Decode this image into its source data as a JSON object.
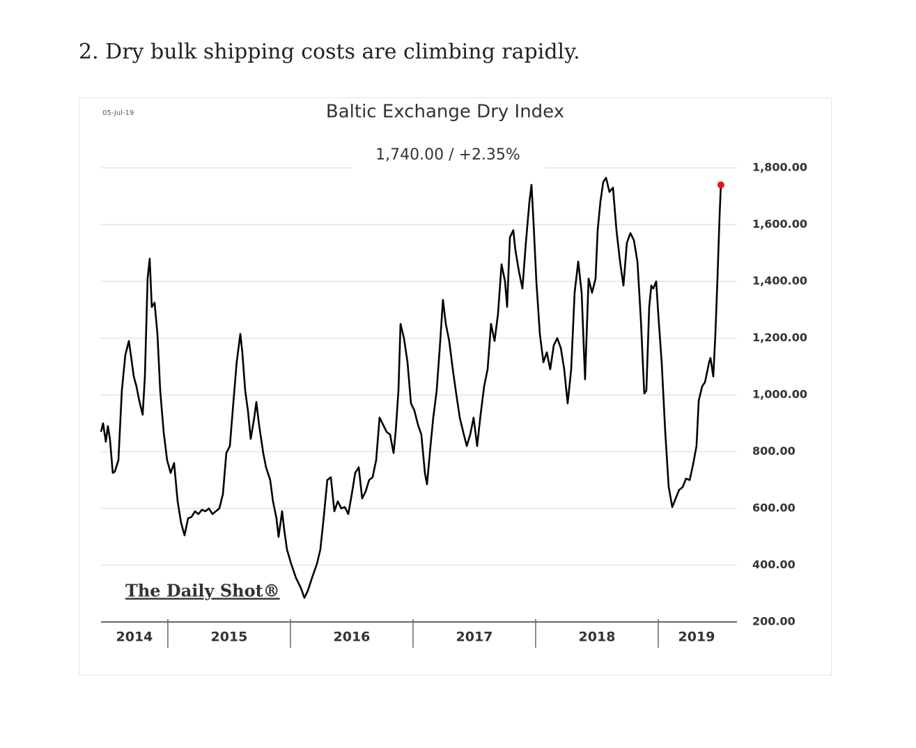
{
  "heading": "2. Dry bulk shipping costs are climbing rapidly.",
  "chart_data": {
    "type": "line",
    "date": "05-Jul-19",
    "title": "Baltic Exchange Dry Index",
    "annotation": "1,740.00 / +2.35%",
    "watermark": "The Daily Shot®",
    "x_categories": [
      "2014",
      "2015",
      "2016",
      "2017",
      "2018",
      "2019"
    ],
    "xlim": [
      2014.455,
      2019.625
    ],
    "xticks": [
      2015,
      2016,
      2017,
      2018,
      2019
    ],
    "ylim": [
      200,
      1800
    ],
    "yticks": [
      {
        "value": 200,
        "label": "200.00"
      },
      {
        "value": 400,
        "label": "400.00"
      },
      {
        "value": 600,
        "label": "600.00"
      },
      {
        "value": 800,
        "label": "800.00"
      },
      {
        "value": 1000,
        "label": "1,000.00"
      },
      {
        "value": 1200,
        "label": "1,200.00"
      },
      {
        "value": 1400,
        "label": "1,400.00"
      },
      {
        "value": 1600,
        "label": "1,600.00"
      },
      {
        "value": 1800,
        "label": "1,800.00"
      }
    ],
    "grid": true,
    "last_point_color": "#e8141b",
    "x": [
      2014.455,
      2014.472,
      2014.494,
      2014.511,
      2014.528,
      2014.551,
      2014.568,
      2014.597,
      2014.625,
      2014.653,
      2014.682,
      2014.699,
      2014.722,
      2014.744,
      2014.767,
      2014.795,
      2014.813,
      2014.835,
      2014.852,
      2014.869,
      2014.892,
      2014.915,
      2014.938,
      2014.966,
      2014.994,
      2015.023,
      2015.051,
      2015.08,
      2015.108,
      2015.136,
      2015.165,
      2015.193,
      2015.222,
      2015.25,
      2015.278,
      2015.307,
      2015.335,
      2015.364,
      2015.392,
      2015.42,
      2015.449,
      2015.477,
      2015.506,
      2015.534,
      2015.562,
      2015.591,
      2015.608,
      2015.631,
      2015.653,
      2015.676,
      2015.705,
      2015.722,
      2015.744,
      2015.778,
      2015.801,
      2015.835,
      2015.858,
      2015.886,
      2015.903,
      2015.932,
      2015.949,
      2015.972,
      2016.006,
      2016.045,
      2016.085,
      2016.114,
      2016.142,
      2016.176,
      2016.216,
      2016.244,
      2016.273,
      2016.301,
      2016.33,
      2016.358,
      2016.386,
      2016.415,
      2016.443,
      2016.472,
      2016.5,
      2016.528,
      2016.557,
      2016.585,
      2016.614,
      2016.642,
      2016.67,
      2016.699,
      2016.727,
      2016.756,
      2016.784,
      2016.813,
      2016.841,
      2016.858,
      2016.881,
      2016.898,
      2016.926,
      2016.955,
      2016.983,
      2017.011,
      2017.04,
      2017.068,
      2017.097,
      2017.114,
      2017.142,
      2017.165,
      2017.193,
      2017.222,
      2017.244,
      2017.267,
      2017.295,
      2017.324,
      2017.352,
      2017.381,
      2017.409,
      2017.438,
      2017.466,
      2017.494,
      2017.523,
      2017.551,
      2017.58,
      2017.608,
      2017.636,
      2017.665,
      2017.693,
      2017.722,
      2017.75,
      2017.767,
      2017.79,
      2017.818,
      2017.835,
      2017.864,
      2017.892,
      2017.92,
      2017.949,
      2017.966,
      2017.983,
      2018.006,
      2018.034,
      2018.063,
      2018.091,
      2018.119,
      2018.148,
      2018.176,
      2018.205,
      2018.233,
      2018.261,
      2018.29,
      2018.318,
      2018.347,
      2018.375,
      2018.403,
      2018.432,
      2018.46,
      2018.489,
      2018.506,
      2018.528,
      2018.551,
      2018.574,
      2018.602,
      2018.631,
      2018.659,
      2018.688,
      2018.716,
      2018.744,
      2018.773,
      2018.801,
      2018.83,
      2018.858,
      2018.886,
      2018.903,
      2018.926,
      2018.943,
      2018.96,
      2018.983,
      2019.0,
      2019.028,
      2019.057,
      2019.085,
      2019.114,
      2019.142,
      2019.17,
      2019.199,
      2019.227,
      2019.256,
      2019.284,
      2019.312,
      2019.33,
      2019.358,
      2019.381,
      2019.415,
      2019.426,
      2019.449,
      2019.466,
      2019.483,
      2019.5,
      2019.511
    ],
    "series": [
      {
        "name": "Baltic Exchange Dry Index",
        "color": "#000000",
        "values": [
          870,
          900,
          835,
          890,
          845,
          725,
          730,
          770,
          1015,
          1140,
          1190,
          1140,
          1065,
          1030,
          980,
          930,
          1065,
          1410,
          1480,
          1310,
          1325,
          1215,
          1015,
          870,
          770,
          725,
          760,
          625,
          550,
          505,
          565,
          570,
          590,
          580,
          595,
          590,
          600,
          580,
          590,
          600,
          650,
          795,
          820,
          970,
          1115,
          1215,
          1150,
          1015,
          945,
          845,
          920,
          975,
          895,
          795,
          745,
          700,
          625,
          565,
          500,
          590,
          525,
          455,
          405,
          355,
          320,
          285,
          310,
          355,
          405,
          455,
          575,
          700,
          710,
          590,
          625,
          600,
          605,
          580,
          650,
          725,
          745,
          635,
          660,
          700,
          710,
          770,
          920,
          895,
          870,
          860,
          795,
          870,
          1015,
          1250,
          1200,
          1115,
          970,
          945,
          895,
          860,
          725,
          685,
          820,
          920,
          1015,
          1190,
          1335,
          1250,
          1190,
          1090,
          1005,
          920,
          870,
          820,
          860,
          920,
          820,
          930,
          1030,
          1090,
          1250,
          1190,
          1285,
          1460,
          1400,
          1310,
          1555,
          1580,
          1510,
          1435,
          1375,
          1535,
          1680,
          1740,
          1605,
          1400,
          1215,
          1115,
          1150,
          1090,
          1175,
          1200,
          1165,
          1090,
          970,
          1090,
          1360,
          1470,
          1360,
          1055,
          1410,
          1360,
          1410,
          1580,
          1680,
          1750,
          1765,
          1715,
          1730,
          1580,
          1470,
          1385,
          1535,
          1570,
          1545,
          1470,
          1265,
          1005,
          1015,
          1310,
          1385,
          1375,
          1400,
          1285,
          1115,
          870,
          675,
          605,
          635,
          665,
          675,
          705,
          700,
          755,
          820,
          980,
          1030,
          1045,
          1115,
          1130,
          1065,
          1215,
          1410,
          1630,
          1740
        ]
      }
    ]
  }
}
